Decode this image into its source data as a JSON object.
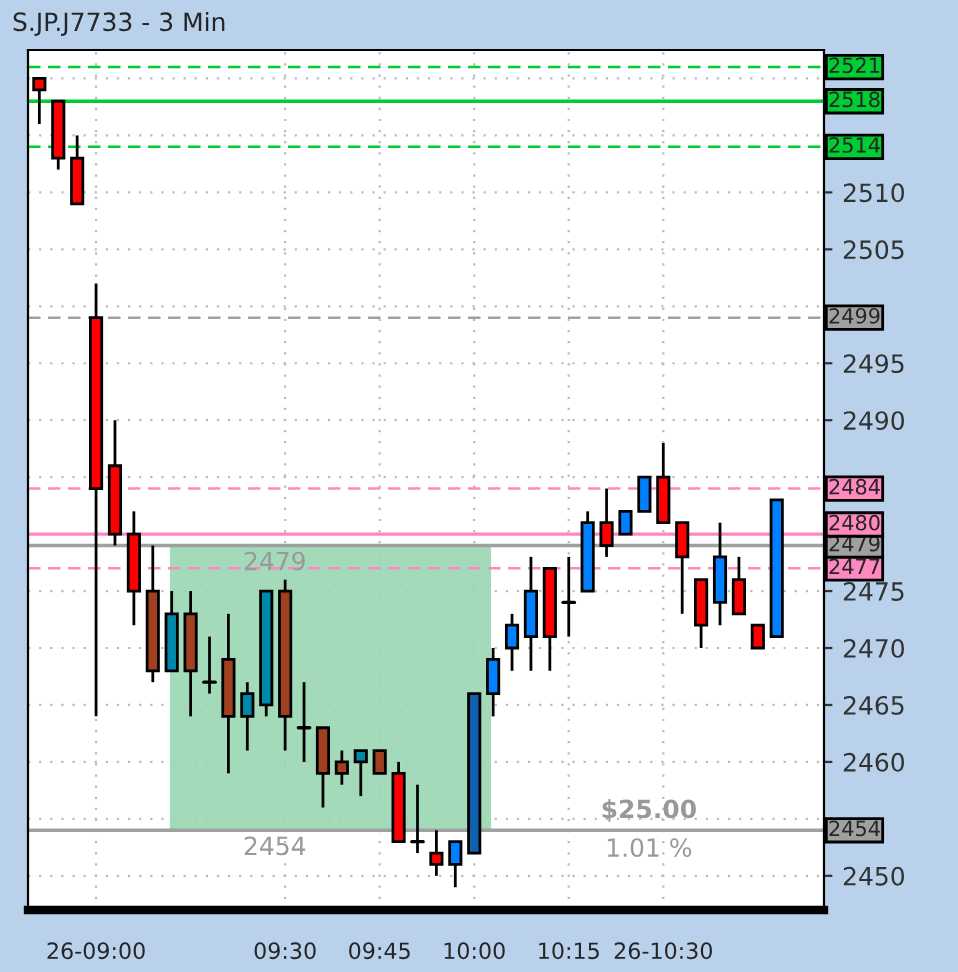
{
  "chart_data": {
    "type": "candlestick",
    "title": "S.JP.J7733 - 3 Min",
    "categories": [
      null,
      null,
      null,
      "26-09:00",
      null,
      null,
      null,
      null,
      null,
      null,
      null,
      null,
      null,
      "09:30",
      null,
      null,
      null,
      null,
      "09:45",
      null,
      null,
      null,
      null,
      "10:00",
      null,
      null,
      null,
      null,
      "10:15",
      null,
      null,
      null,
      null,
      "26-10:30",
      null,
      null,
      null,
      null,
      null,
      null
    ],
    "ohlc": [
      [
        2520,
        2520,
        2516,
        2519
      ],
      [
        2518,
        2518,
        2512,
        2513
      ],
      [
        2513,
        2515,
        2509,
        2509
      ],
      [
        2499,
        2502,
        2464,
        2484
      ],
      [
        2486,
        2490,
        2479,
        2480
      ],
      [
        2480,
        2482,
        2472,
        2475
      ],
      [
        2475,
        2479,
        2467,
        2468
      ],
      [
        2468,
        2475,
        2468,
        2473
      ],
      [
        2473,
        2475,
        2464,
        2468
      ],
      [
        2467,
        2471,
        2466,
        2467
      ],
      [
        2469,
        2473,
        2459,
        2464
      ],
      [
        2464,
        2467,
        2461,
        2466
      ],
      [
        2465,
        2475,
        2464,
        2475
      ],
      [
        2475,
        2476,
        2461,
        2464
      ],
      [
        2463,
        2467,
        2460,
        2463
      ],
      [
        2463,
        2463,
        2456,
        2459
      ],
      [
        2460,
        2461,
        2458,
        2459
      ],
      [
        2460,
        2461,
        2457,
        2461
      ],
      [
        2461,
        2461,
        2459,
        2459
      ],
      [
        2459,
        2460,
        2453,
        2453
      ],
      [
        2453,
        2458,
        2452,
        2453
      ],
      [
        2452,
        2454,
        2450,
        2451
      ],
      [
        2451,
        2453,
        2449,
        2453
      ],
      [
        2452,
        2466,
        2452,
        2466
      ],
      [
        2466,
        2470,
        2464,
        2469
      ],
      [
        2470,
        2473,
        2468,
        2472
      ],
      [
        2471,
        2478,
        2468,
        2475
      ],
      [
        2477,
        2477,
        2468,
        2471
      ],
      [
        2474,
        2478,
        2471,
        2474
      ],
      [
        2475,
        2482,
        2475,
        2481
      ],
      [
        2481,
        2484,
        2478,
        2479
      ],
      [
        2480,
        2482,
        2480,
        2482
      ],
      [
        2482,
        2485,
        2482,
        2485
      ],
      [
        2485,
        2488,
        2481,
        2481
      ],
      [
        2481,
        2481,
        2473,
        2478
      ],
      [
        2476,
        2476,
        2470,
        2472
      ],
      [
        2474,
        2481,
        2472,
        2478
      ],
      [
        2476,
        2478,
        2473,
        2473
      ],
      [
        2472,
        2472,
        2470,
        2470
      ],
      [
        2471,
        2483,
        2471,
        2483
      ]
    ],
    "colors": [
      "#ff0000",
      "#ff0000",
      "#ff0000",
      "#ff0000",
      "#ff0000",
      "#ff0000",
      "#a0401f",
      "#0088aa",
      "#a0401f",
      "#000000",
      "#a0401f",
      "#0088aa",
      "#0088aa",
      "#a0401f",
      "#000000",
      "#a0401f",
      "#a0401f",
      "#0088aa",
      "#a0401f",
      "#ff0000",
      "#000000",
      "#ff0000",
      "#0080ff",
      "#1060b0",
      "#0080ff",
      "#0080ff",
      "#0080ff",
      "#ff0000",
      "#000000",
      "#0080ff",
      "#ff0000",
      "#0080ff",
      "#0080ff",
      "#ff0000",
      "#ff0000",
      "#ff0000",
      "#0080ff",
      "#ff0000",
      "#ff0000",
      "#0080ff"
    ],
    "ylim": [
      2447,
      2522.5
    ],
    "yticks": [
      2450,
      {
        "value": 2455,
        "label": null
      },
      2460,
      2465,
      2470,
      2475,
      {
        "value": 2480,
        "label": null
      },
      {
        "value": 2485,
        "label": null
      },
      2490,
      2495,
      {
        "value": 2500,
        "label": null
      },
      2505,
      2510,
      {
        "value": 2515,
        "label": null
      },
      {
        "value": 2520,
        "label": null
      }
    ],
    "grid": true,
    "ref_lines": [
      {
        "axis": "y",
        "value": 2521,
        "label": "2521",
        "color": "#00cc33",
        "line_style": "dashed"
      },
      {
        "axis": "y",
        "value": 2518,
        "label": "2518",
        "color": "#00cc33",
        "line_style": "solid"
      },
      {
        "axis": "y",
        "value": 2514,
        "label": "2514",
        "color": "#00cc33",
        "line_style": "dashed"
      },
      {
        "axis": "y",
        "value": 2499,
        "label": "2499",
        "color": "#a0a0a0",
        "line_style": "dashed"
      },
      {
        "axis": "y",
        "value": 2484,
        "label": "2484",
        "color": "#ff88c0",
        "line_style": "dashed"
      },
      {
        "axis": "y",
        "value": 2480,
        "label": "2480",
        "color": "#ff88c0",
        "line_style": "solid"
      },
      {
        "axis": "y",
        "value": 2479,
        "label": "2479",
        "color": "#a0a0a0",
        "line_style": "solid"
      },
      {
        "axis": "y",
        "value": 2477,
        "label": "2477",
        "color": "#ff88c0",
        "line_style": "dashed"
      },
      {
        "axis": "y",
        "value": 2454,
        "label": "2454",
        "color": "#a0a0a0",
        "line_style": "solid"
      }
    ],
    "bands": [
      {
        "axis": "y",
        "from": 2454,
        "to": 2479,
        "color": "#99d6b3"
      }
    ],
    "annotations": [
      {
        "text": "2479",
        "y": 2479
      },
      {
        "text": "2454",
        "y": 2454
      },
      "$25.00",
      "1.01 %"
    ]
  }
}
